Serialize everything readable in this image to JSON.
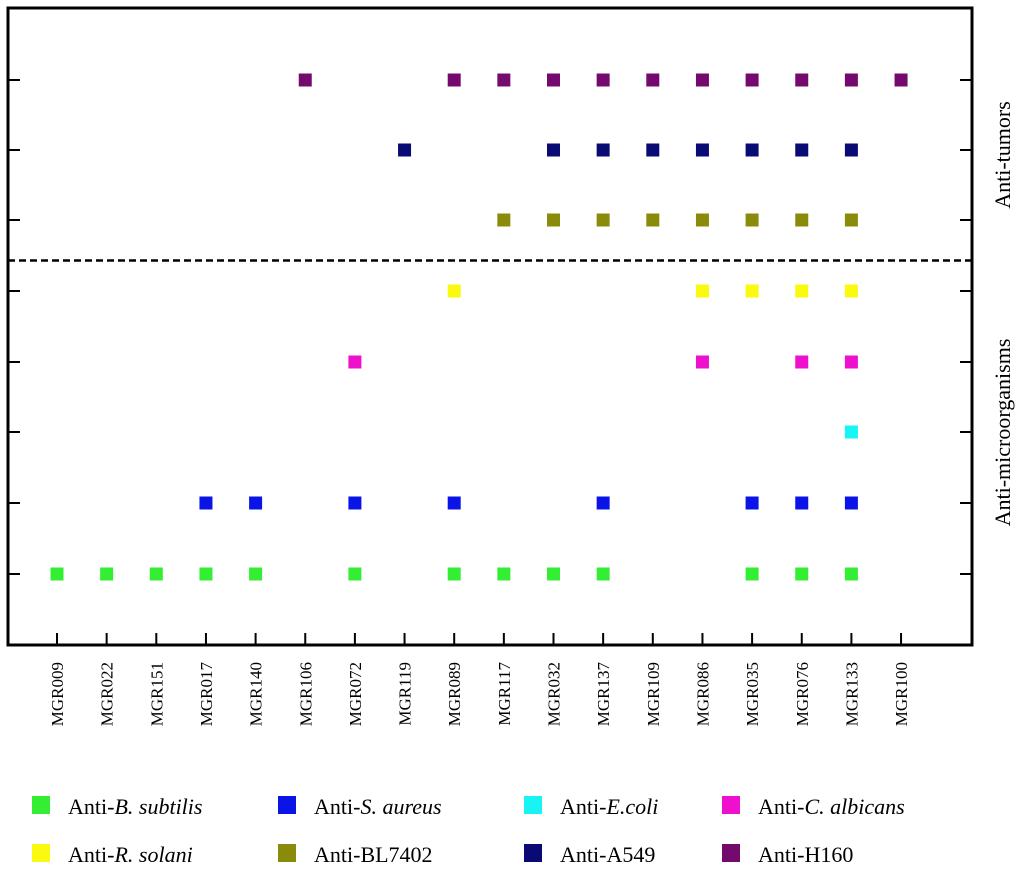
{
  "chart_data": {
    "type": "scatter",
    "x_categories": [
      "MGR009",
      "MGR022",
      "MGR151",
      "MGR017",
      "MGR140",
      "MGR106",
      "MGR072",
      "MGR119",
      "MGR089",
      "MGR117",
      "MGR032",
      "MGR137",
      "MGR109",
      "MGR086",
      "MGR035",
      "MGR076",
      "MGR133",
      "MGR100"
    ],
    "groups": [
      {
        "label": "Anti-tumors",
        "series": [
          "Anti-BL7402",
          "Anti-A549",
          "Anti-H160"
        ]
      },
      {
        "label": "Anti-microorganisms",
        "series": [
          "Anti-B. subtilis",
          "Anti-S. aureus",
          "Anti-E.coli",
          "Anti-C. albicans",
          "Anti-R. solani"
        ]
      }
    ],
    "grid": false,
    "legend_position": "bottom",
    "series": [
      {
        "name": "Anti-B. subtilis",
        "legend_prefix": "Anti-",
        "legend_italic": "B. subtilis",
        "legend_suffix": "",
        "color": "#33ee33",
        "x": [
          "MGR009",
          "MGR022",
          "MGR151",
          "MGR017",
          "MGR140",
          "MGR072",
          "MGR089",
          "MGR117",
          "MGR032",
          "MGR137",
          "MGR035",
          "MGR076",
          "MGR133"
        ]
      },
      {
        "name": "Anti-S. aureus",
        "legend_prefix": "Anti-",
        "legend_italic": "S. aureus",
        "legend_suffix": "",
        "color": "#0a14e6",
        "x": [
          "MGR017",
          "MGR140",
          "MGR072",
          "MGR089",
          "MGR137",
          "MGR035",
          "MGR076",
          "MGR133"
        ]
      },
      {
        "name": "Anti-E.coli",
        "legend_prefix": "Anti-",
        "legend_italic": "E.coli",
        "legend_suffix": "",
        "color": "#18f4f4",
        "x": [
          "MGR133"
        ]
      },
      {
        "name": "Anti-C. albicans",
        "legend_prefix": "Anti-",
        "legend_italic": "C. albicans",
        "legend_suffix": "",
        "color": "#ee10cc",
        "x": [
          "MGR072",
          "MGR086",
          "MGR076",
          "MGR133"
        ]
      },
      {
        "name": "Anti-R. solani",
        "legend_prefix": "Anti-",
        "legend_italic": "R. solani",
        "legend_suffix": "",
        "color": "#fafa10",
        "x": [
          "MGR089",
          "MGR086",
          "MGR035",
          "MGR076",
          "MGR133"
        ]
      },
      {
        "name": "Anti-BL7402",
        "legend_prefix": "Anti-BL7402",
        "legend_italic": "",
        "legend_suffix": "",
        "color": "#8b8b0b",
        "x": [
          "MGR117",
          "MGR032",
          "MGR137",
          "MGR109",
          "MGR086",
          "MGR035",
          "MGR076",
          "MGR133"
        ]
      },
      {
        "name": "Anti-A549",
        "legend_prefix": "Anti-A549",
        "legend_italic": "",
        "legend_suffix": "",
        "color": "#0a0a74",
        "x": [
          "MGR119",
          "MGR032",
          "MGR137",
          "MGR109",
          "MGR086",
          "MGR035",
          "MGR076",
          "MGR133"
        ]
      },
      {
        "name": "Anti-H160",
        "legend_prefix": "Anti-H160",
        "legend_italic": "",
        "legend_suffix": "",
        "color": "#750a6e",
        "x": [
          "MGR106",
          "MGR089",
          "MGR117",
          "MGR032",
          "MGR137",
          "MGR109",
          "MGR086",
          "MGR035",
          "MGR076",
          "MGR133",
          "MGR100"
        ]
      }
    ]
  }
}
